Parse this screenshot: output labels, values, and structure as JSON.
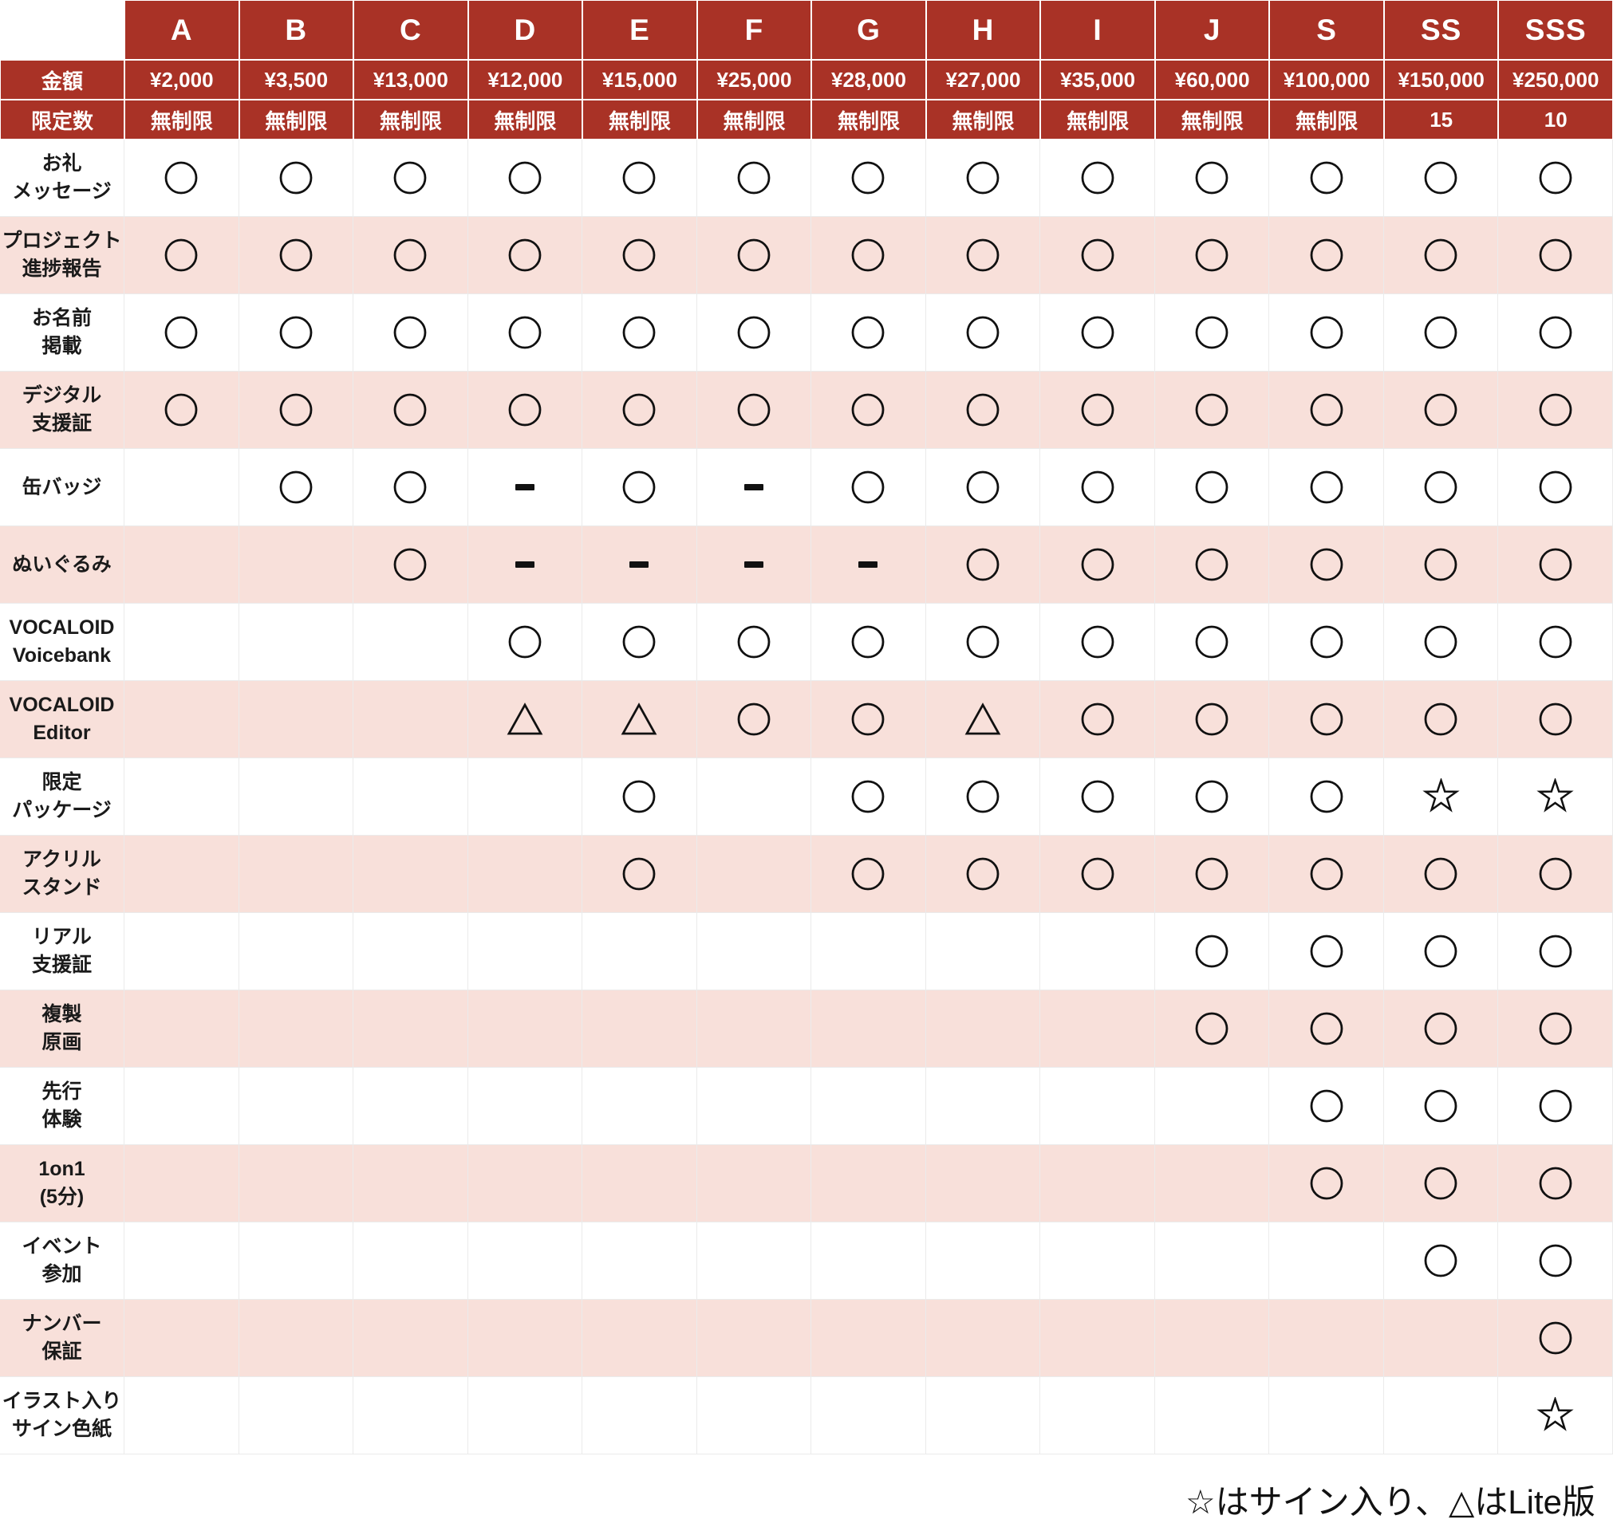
{
  "chart_data": {
    "type": "table",
    "header": {
      "tiers": [
        "A",
        "B",
        "C",
        "D",
        "E",
        "F",
        "G",
        "H",
        "I",
        "J",
        "S",
        "SS",
        "SSS"
      ],
      "price_row_label": "金額",
      "prices": [
        "¥2,000",
        "¥3,500",
        "¥13,000",
        "¥12,000",
        "¥15,000",
        "¥25,000",
        "¥28,000",
        "¥27,000",
        "¥35,000",
        "¥60,000",
        "¥100,000",
        "¥150,000",
        "¥250,000"
      ],
      "limit_row_label": "限定数",
      "limits": [
        "無制限",
        "無制限",
        "無制限",
        "無制限",
        "無制限",
        "無制限",
        "無制限",
        "無制限",
        "無制限",
        "無制限",
        "無制限",
        "15",
        "10"
      ]
    },
    "rows": [
      {
        "label": "お礼\nメッセージ",
        "cells": [
          "O",
          "O",
          "O",
          "O",
          "O",
          "O",
          "O",
          "O",
          "O",
          "O",
          "O",
          "O",
          "O"
        ]
      },
      {
        "label": "プロジェクト\n進捗報告",
        "cells": [
          "O",
          "O",
          "O",
          "O",
          "O",
          "O",
          "O",
          "O",
          "O",
          "O",
          "O",
          "O",
          "O"
        ]
      },
      {
        "label": "お名前\n掲載",
        "cells": [
          "O",
          "O",
          "O",
          "O",
          "O",
          "O",
          "O",
          "O",
          "O",
          "O",
          "O",
          "O",
          "O"
        ]
      },
      {
        "label": "デジタル\n支援証",
        "cells": [
          "O",
          "O",
          "O",
          "O",
          "O",
          "O",
          "O",
          "O",
          "O",
          "O",
          "O",
          "O",
          "O"
        ]
      },
      {
        "label": "缶バッジ",
        "cells": [
          "",
          "O",
          "O",
          "D",
          "O",
          "D",
          "O",
          "O",
          "O",
          "O",
          "O",
          "O",
          "O"
        ]
      },
      {
        "label": "ぬいぐるみ",
        "cells": [
          "",
          "",
          "O",
          "D",
          "D",
          "D",
          "D",
          "O",
          "O",
          "O",
          "O",
          "O",
          "O"
        ]
      },
      {
        "label": "VOCALOID\nVoicebank",
        "cells": [
          "",
          "",
          "",
          "O",
          "O",
          "O",
          "O",
          "O",
          "O",
          "O",
          "O",
          "O",
          "O"
        ]
      },
      {
        "label": "VOCALOID\nEditor",
        "cells": [
          "",
          "",
          "",
          "T",
          "T",
          "O",
          "O",
          "T",
          "O",
          "O",
          "O",
          "O",
          "O"
        ]
      },
      {
        "label": "限定\nパッケージ",
        "cells": [
          "",
          "",
          "",
          "",
          "O",
          "",
          "O",
          "O",
          "O",
          "O",
          "O",
          "S",
          "S"
        ]
      },
      {
        "label": "アクリル\nスタンド",
        "cells": [
          "",
          "",
          "",
          "",
          "O",
          "",
          "O",
          "O",
          "O",
          "O",
          "O",
          "O",
          "O"
        ]
      },
      {
        "label": "リアル\n支援証",
        "cells": [
          "",
          "",
          "",
          "",
          "",
          "",
          "",
          "",
          "",
          "O",
          "O",
          "O",
          "O"
        ]
      },
      {
        "label": "複製\n原画",
        "cells": [
          "",
          "",
          "",
          "",
          "",
          "",
          "",
          "",
          "",
          "O",
          "O",
          "O",
          "O"
        ]
      },
      {
        "label": "先行\n体験",
        "cells": [
          "",
          "",
          "",
          "",
          "",
          "",
          "",
          "",
          "",
          "",
          "O",
          "O",
          "O"
        ]
      },
      {
        "label": "1on1\n(5分)",
        "cells": [
          "",
          "",
          "",
          "",
          "",
          "",
          "",
          "",
          "",
          "",
          "O",
          "O",
          "O"
        ]
      },
      {
        "label": "イベント\n参加",
        "cells": [
          "",
          "",
          "",
          "",
          "",
          "",
          "",
          "",
          "",
          "",
          "",
          "O",
          "O"
        ]
      },
      {
        "label": "ナンバー\n保証",
        "cells": [
          "",
          "",
          "",
          "",
          "",
          "",
          "",
          "",
          "",
          "",
          "",
          "",
          "O"
        ]
      },
      {
        "label": "イラスト入り\nサイン色紙",
        "cells": [
          "",
          "",
          "",
          "",
          "",
          "",
          "",
          "",
          "",
          "",
          "",
          "",
          "S"
        ]
      }
    ],
    "footnote": "☆はサイン入り、△はLite版"
  },
  "symbols": {
    "O": "circle",
    "T": "triangle",
    "S": "star",
    "D": "dash"
  },
  "colors": {
    "header_bg": "#A93226",
    "alt_row_bg": "#F8E0DA"
  }
}
